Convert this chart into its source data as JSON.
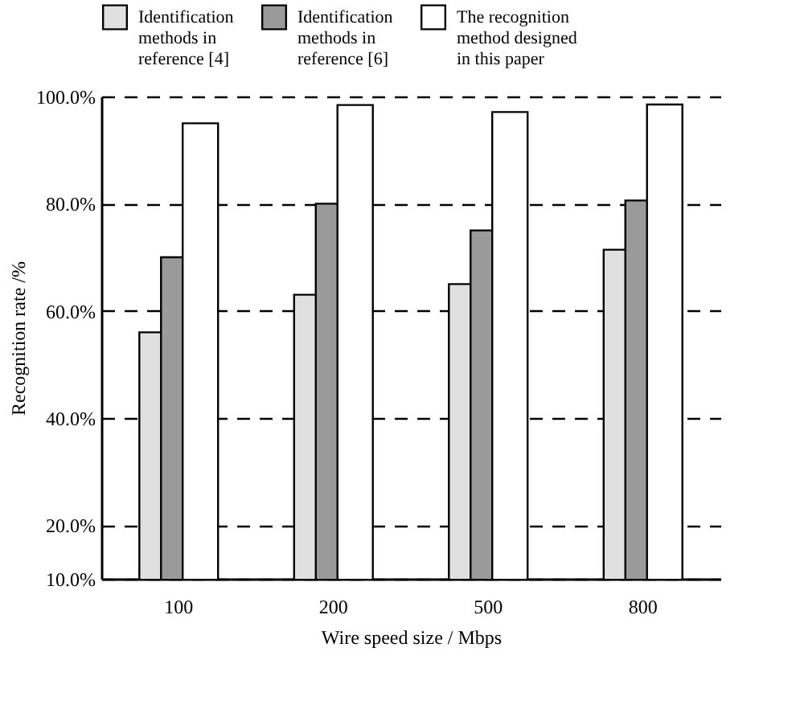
{
  "chart_data": {
    "type": "bar",
    "xlabel": "Wire speed size / Mbps",
    "ylabel": "Recognition rate /%",
    "categories": [
      "100",
      "200",
      "500",
      "800"
    ],
    "series": [
      {
        "name": "Identification methods in reference [4]",
        "color": "#e0e0e0",
        "values": [
          56,
          63,
          65,
          71.4
        ]
      },
      {
        "name": "Identification methods in reference [6]",
        "color": "#9a9a9a",
        "values": [
          70,
          80,
          75,
          80.6
        ]
      },
      {
        "name": "The recognition method designed in this paper",
        "color": "#ffffff",
        "values": [
          95,
          98.4,
          97.1,
          98.5
        ]
      }
    ],
    "ylim": [
      10,
      100
    ],
    "yticks": [
      {
        "value": 10,
        "label": "10.0%"
      },
      {
        "value": 20,
        "label": "20.0%"
      },
      {
        "value": 40,
        "label": "40.0%"
      },
      {
        "value": 60,
        "label": "60.0%"
      },
      {
        "value": 80,
        "label": "80.0%"
      },
      {
        "value": 100,
        "label": "100.0%"
      }
    ],
    "grid": "y",
    "legend": "top",
    "line_style": "dashed"
  }
}
